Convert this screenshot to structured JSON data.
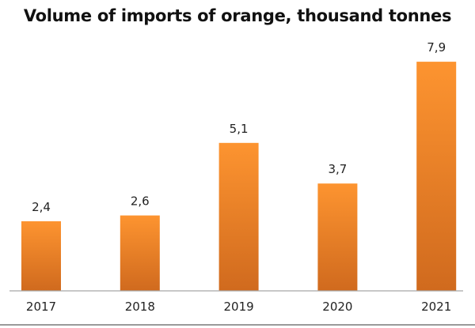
{
  "chart_data": {
    "type": "bar",
    "title": "Volume of imports of orange, thousand tonnes",
    "categories": [
      "2017",
      "2018",
      "2019",
      "2020",
      "2021"
    ],
    "values": [
      2.4,
      2.6,
      5.1,
      3.7,
      7.9
    ],
    "data_labels": [
      "2,4",
      "2,6",
      "5,1",
      "3,7",
      "7,9"
    ],
    "xlabel": "",
    "ylabel": "",
    "ylim": [
      0,
      8.5
    ],
    "grid": false,
    "legend": "none",
    "colors": {
      "bar_top": "#fd9430",
      "bar_bottom": "#d06a1e",
      "axis": "#a6a6a6"
    }
  }
}
